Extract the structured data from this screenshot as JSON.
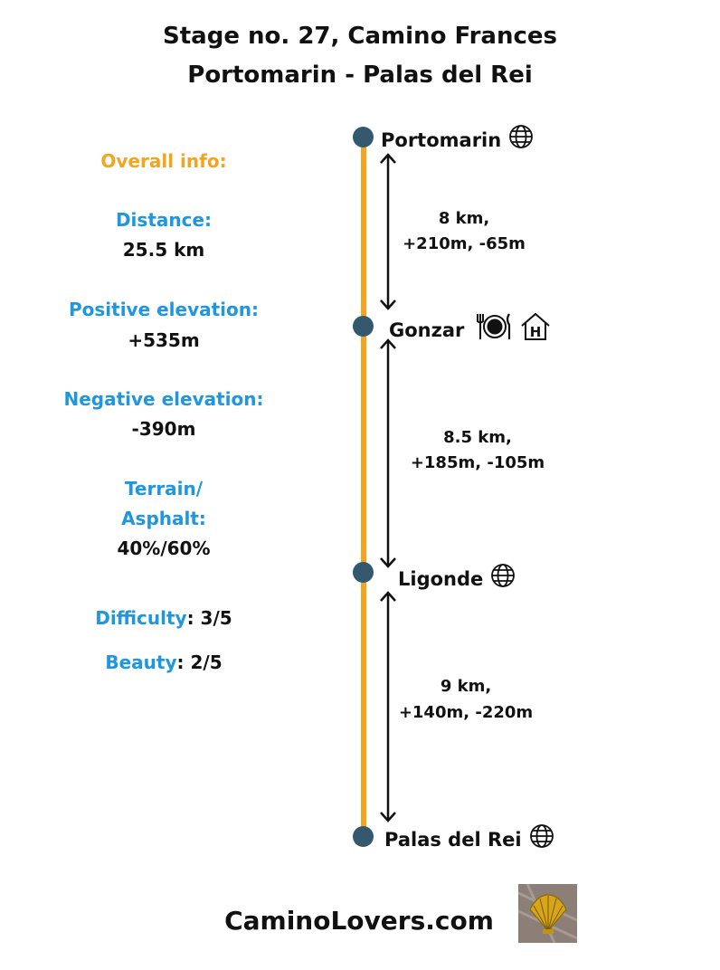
{
  "header": {
    "line1": "Stage no. 27, Camino Frances",
    "line2": "Portomarin - Palas del Rei"
  },
  "overall": {
    "heading": "Overall info:",
    "distance_label": "Distance:",
    "distance_value": "25.5 km",
    "pos_label": "Positive elevation:",
    "pos_value": "+535m",
    "neg_label": "Negative elevation:",
    "neg_value": "-390m",
    "terrain_label_1": "Terrain/",
    "terrain_label_2": "Asphalt:",
    "terrain_value": "40%/60%",
    "difficulty_label": "Difficulty",
    "difficulty_value": ": 3/5",
    "beauty_label": "Beauty",
    "beauty_value": ": 2/5"
  },
  "stops": [
    {
      "name": "Portomarin",
      "icons": [
        "globe-icon"
      ]
    },
    {
      "name": "Gonzar",
      "icons": [
        "restaurant-icon",
        "hostel-icon"
      ]
    },
    {
      "name": "Ligonde",
      "icons": [
        "globe-icon"
      ]
    },
    {
      "name": "Palas del Rei",
      "icons": [
        "globe-icon"
      ]
    }
  ],
  "segments": [
    {
      "distance": "8 km,",
      "elevation": "+210m, -65m"
    },
    {
      "distance": "8.5 km,",
      "elevation": "+185m, -105m"
    },
    {
      "distance": "9 km,",
      "elevation": "+140m, -220m"
    }
  ],
  "footer": {
    "site": "CaminoLovers.com"
  },
  "colors": {
    "accent_orange": "#f3a51d",
    "label_blue": "#1e96e0",
    "node_dark": "#34586e"
  }
}
